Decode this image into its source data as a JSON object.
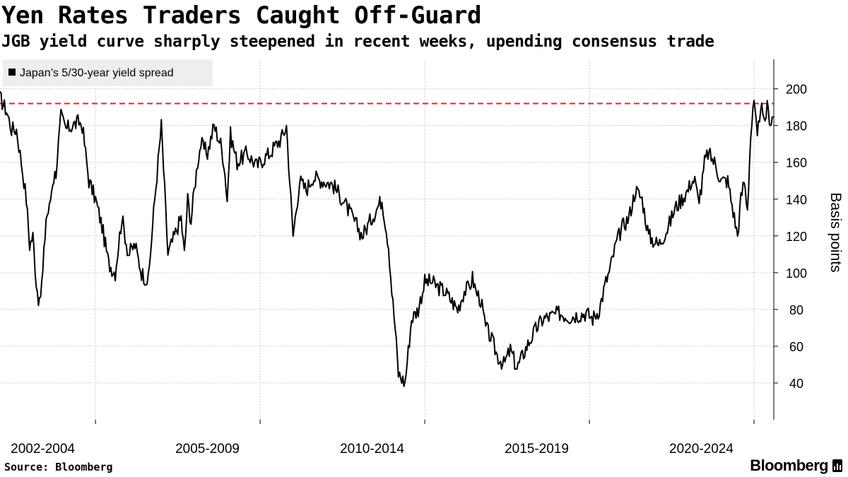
{
  "title": "Yen Rates Traders Caught Off-Guard",
  "subtitle": "JGB yield curve sharply steepened in recent weeks, upending consensus trade",
  "source": "Source: Bloomberg",
  "brand": "Bloomberg",
  "colors": {
    "line": "#000000",
    "reference_line": "#e8231f",
    "grid": "#cccccc",
    "legend_bg": "#eeeeee"
  },
  "chart_data": {
    "type": "line",
    "title": "Yen Rates Traders Caught Off-Guard",
    "subtitle": "JGB yield curve sharply steepened in recent weeks, upending consensus trade",
    "ylabel": "Basis points",
    "ylim": [
      20,
      216
    ],
    "y_ticks": [
      40,
      60,
      80,
      100,
      120,
      140,
      160,
      180,
      200
    ],
    "y_tick_labels": [
      "40",
      "60",
      "80",
      "100",
      "120",
      "140",
      "160",
      "180",
      "200"
    ],
    "x_range": [
      2001.5,
      2025.0
    ],
    "x_group_labels": [
      "2002-2004",
      "2005-2009",
      "2010-2014",
      "2015-2019",
      "2020-2024"
    ],
    "x_group_centers": [
      2002.8,
      2007.8,
      2012.8,
      2017.8,
      2022.8
    ],
    "x_gridlines": [
      2004.4,
      2009.4,
      2014.4,
      2019.4,
      2024.4
    ],
    "legend": "Japan’s 5/30-year yield spread",
    "legend_placement": "top-left",
    "reference_line": {
      "y": 192,
      "style": "dashed",
      "color": "#e8231f"
    },
    "grid": true,
    "series": [
      {
        "name": "Japan’s 5/30-year yield spread",
        "x": [
          2001.5,
          2001.7,
          2001.85,
          2002.0,
          2002.15,
          2002.3,
          2002.4,
          2002.5,
          2002.6,
          2002.7,
          2002.8,
          2002.9,
          2003.0,
          2003.1,
          2003.2,
          2003.35,
          2003.5,
          2003.7,
          2003.9,
          2004.0,
          2004.2,
          2004.4,
          2004.6,
          2004.8,
          2005.0,
          2005.2,
          2005.4,
          2005.6,
          2005.8,
          2006.0,
          2006.2,
          2006.4,
          2006.6,
          2006.8,
          2007.0,
          2007.1,
          2007.2,
          2007.3,
          2007.4,
          2007.5,
          2007.6,
          2007.8,
          2008.0,
          2008.1,
          2008.2,
          2008.3,
          2008.4,
          2008.5,
          2008.7,
          2009.0,
          2009.3,
          2009.5,
          2009.7,
          2009.9,
          2010.0,
          2010.1,
          2010.2,
          2010.4,
          2010.6,
          2010.8,
          2011.0,
          2011.3,
          2011.6,
          2011.9,
          2012.2,
          2012.5,
          2012.8,
          2013.1,
          2013.3,
          2013.4,
          2013.5,
          2013.6,
          2013.8,
          2014.0,
          2014.2,
          2014.4,
          2014.6,
          2014.8,
          2015.0,
          2015.2,
          2015.4,
          2015.6,
          2015.75,
          2015.85,
          2015.95,
          2016.1,
          2016.25,
          2016.4,
          2016.6,
          2016.8,
          2017.0,
          2017.2,
          2017.5,
          2017.8,
          2018.0,
          2018.2,
          2018.5,
          2018.8,
          2019.0,
          2019.3,
          2019.5,
          2019.7,
          2019.9,
          2020.0,
          2020.2,
          2020.4,
          2020.6,
          2020.8,
          2021.0,
          2021.2,
          2021.5,
          2021.8,
          2022.0,
          2022.2,
          2022.4,
          2022.5,
          2022.6,
          2022.7,
          2022.8,
          2022.9,
          2023.0,
          2023.2,
          2023.4,
          2023.6,
          2023.8,
          2023.9,
          2024.0,
          2024.1,
          2024.2,
          2024.3,
          2024.4,
          2024.5,
          2024.6,
          2024.7,
          2024.8,
          2024.9,
          2024.95,
          2025.0
        ],
        "values": [
          195,
          188,
          178,
          178,
          160,
          140,
          115,
          120,
          95,
          82,
          100,
          130,
          135,
          150,
          155,
          185,
          178,
          180,
          182,
          180,
          150,
          140,
          125,
          105,
          100,
          130,
          110,
          115,
          100,
          95,
          140,
          180,
          110,
          120,
          130,
          110,
          140,
          128,
          145,
          160,
          170,
          165,
          180,
          175,
          170,
          160,
          140,
          175,
          160,
          165,
          158,
          162,
          165,
          170,
          172,
          175,
          180,
          120,
          150,
          145,
          152,
          150,
          148,
          140,
          130,
          120,
          130,
          140,
          115,
          90,
          70,
          45,
          40,
          75,
          80,
          95,
          95,
          92,
          90,
          85,
          80,
          90,
          92,
          97,
          90,
          85,
          70,
          65,
          55,
          50,
          58,
          48,
          60,
          70,
          75,
          76,
          78,
          76,
          77,
          78,
          75,
          80,
          95,
          100,
          115,
          125,
          130,
          145,
          140,
          120,
          115,
          125,
          135,
          140,
          145,
          150,
          150,
          140,
          145,
          160,
          165,
          160,
          150,
          150,
          130,
          120,
          140,
          150,
          135,
          175,
          192,
          172,
          192,
          180,
          190,
          182,
          184,
          185
        ]
      }
    ]
  }
}
